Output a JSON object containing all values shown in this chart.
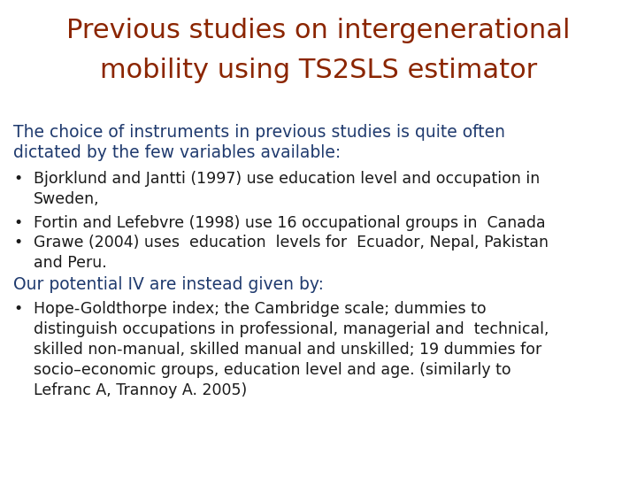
{
  "title_line1": "Previous studies on intergenerational",
  "title_line2": "mobility using TS2SLS estimator",
  "title_color": "#8B2500",
  "background_color": "#FFFFFF",
  "subtitle_color": "#1F3A6E",
  "body_color": "#1A1A1A",
  "subtitle_line1": "The choice of instruments in previous studies is quite often",
  "subtitle_line2": "dictated by the few variables available:",
  "bullets": [
    "Bjorklund and Jantti (1997) use education level and occupation in\nSweden,",
    "Fortin and Lefebvre (1998) use 16 occupational groups in  Canada",
    "Grawe (2004) uses  education  levels for  Ecuador, Nepal, Pakistan\nand Peru."
  ],
  "section2": "Our potential IV are instead given by:",
  "section2_color": "#1F3A6E",
  "bullets2": [
    "Hope-Goldthorpe index; the Cambridge scale; dummies to\ndistinguish occupations in professional, managerial and  technical,\nskilled non-manual, skilled manual and unskilled; 19 dummies for\nsocio–economic groups, education level and age. (similarly to\nLefranc A, Trannoy A. 2005)"
  ],
  "title_fontsize": 22,
  "subtitle_fontsize": 13.5,
  "body_fontsize": 12.5
}
